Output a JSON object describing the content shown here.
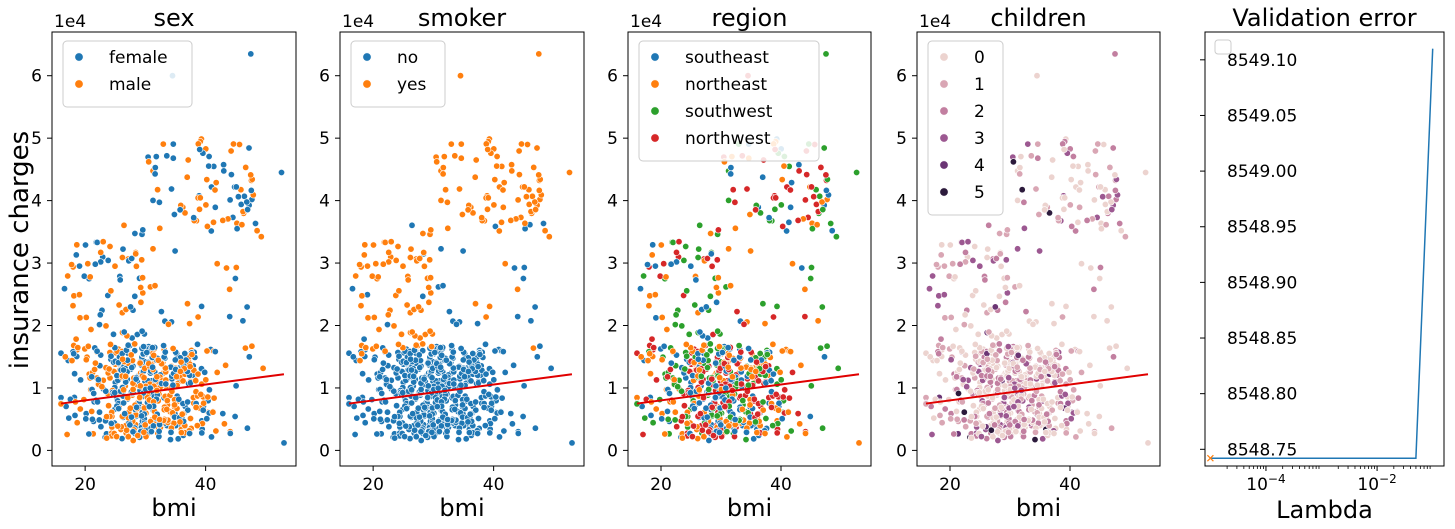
{
  "figure": {
    "ylabel": "insurance charges",
    "scale_label": "1e4"
  },
  "colors": {
    "tab_blue": "#1f77b4",
    "tab_orange": "#ff7f0e",
    "tab_green": "#2ca02c",
    "tab_red": "#d62728",
    "fit_line": "#e00000",
    "children_palette": [
      "#ecd3cf",
      "#d9a6b4",
      "#c27fa0",
      "#9c5891",
      "#6b3574",
      "#2c1a3c"
    ]
  },
  "chart_data": [
    {
      "type": "scatter",
      "title": "sex",
      "xlabel": "bmi",
      "ylabel": "insurance charges",
      "xlim": [
        14.5,
        55
      ],
      "ylim": [
        -0.25,
        6.7
      ],
      "y_scale_label": "1e4",
      "x_ticks": [
        20,
        40
      ],
      "y_ticks": [
        0,
        1,
        2,
        3,
        4,
        5,
        6
      ],
      "legend_position": "upper-left",
      "series": [
        {
          "name": "female",
          "color": "#1f77b4"
        },
        {
          "name": "male",
          "color": "#ff7f0e"
        }
      ],
      "fit_line": {
        "x": [
          16,
          53
        ],
        "y": [
          0.75,
          1.22
        ]
      },
      "grid": false
    },
    {
      "type": "scatter",
      "title": "smoker",
      "xlabel": "bmi",
      "ylabel": "",
      "xlim": [
        14.5,
        55
      ],
      "ylim": [
        -0.25,
        6.7
      ],
      "y_scale_label": "1e4",
      "x_ticks": [
        20,
        40
      ],
      "y_ticks": [
        0,
        1,
        2,
        3,
        4,
        5,
        6
      ],
      "legend_position": "upper-left",
      "series": [
        {
          "name": "no",
          "color": "#1f77b4"
        },
        {
          "name": "yes",
          "color": "#ff7f0e"
        }
      ],
      "fit_line": {
        "x": [
          16,
          53
        ],
        "y": [
          0.75,
          1.22
        ]
      },
      "grid": false
    },
    {
      "type": "scatter",
      "title": "region",
      "xlabel": "bmi",
      "ylabel": "",
      "xlim": [
        14.5,
        55
      ],
      "ylim": [
        -0.25,
        6.7
      ],
      "y_scale_label": "1e4",
      "x_ticks": [
        20,
        40
      ],
      "y_ticks": [
        0,
        1,
        2,
        3,
        4,
        5,
        6
      ],
      "legend_position": "upper-left",
      "series": [
        {
          "name": "southeast",
          "color": "#1f77b4"
        },
        {
          "name": "northeast",
          "color": "#ff7f0e"
        },
        {
          "name": "southwest",
          "color": "#2ca02c"
        },
        {
          "name": "northwest",
          "color": "#d62728"
        }
      ],
      "fit_line": {
        "x": [
          16,
          53
        ],
        "y": [
          0.75,
          1.22
        ]
      },
      "grid": false
    },
    {
      "type": "scatter",
      "title": "children",
      "xlabel": "bmi",
      "ylabel": "",
      "xlim": [
        14.5,
        55
      ],
      "ylim": [
        -0.25,
        6.7
      ],
      "y_scale_label": "1e4",
      "x_ticks": [
        20,
        40
      ],
      "y_ticks": [
        0,
        1,
        2,
        3,
        4,
        5,
        6
      ],
      "legend_position": "upper-left",
      "series": [
        {
          "name": "0",
          "color": "#ecd3cf"
        },
        {
          "name": "1",
          "color": "#d9a6b4"
        },
        {
          "name": "2",
          "color": "#c27fa0"
        },
        {
          "name": "3",
          "color": "#9c5891"
        },
        {
          "name": "4",
          "color": "#6b3574"
        },
        {
          "name": "5",
          "color": "#2c1a3c"
        }
      ],
      "fit_line": {
        "x": [
          16,
          53
        ],
        "y": [
          0.75,
          1.22
        ]
      },
      "grid": false
    },
    {
      "type": "line",
      "title": "Validation error",
      "xlabel": "Lambda",
      "ylabel": "",
      "x_scale": "log",
      "xlim": [
        8e-06,
        0.16
      ],
      "ylim": [
        8548.735,
        8549.125
      ],
      "x_ticks": [
        "10^-4",
        "10^-2"
      ],
      "y_ticks": [
        "8548.75",
        "8548.80",
        "8548.85",
        "8548.90",
        "8548.95",
        "8549.00",
        "8549.05",
        "8549.10"
      ],
      "series": [
        {
          "name": "",
          "color": "#1f77b4",
          "x": [
            1e-05,
            2e-05,
            5e-05,
            0.0001,
            0.0002,
            0.0005,
            0.001,
            0.002,
            0.005,
            0.01,
            0.02,
            0.05,
            0.1
          ],
          "y": [
            8548.742,
            8548.742,
            8548.742,
            8548.742,
            8548.742,
            8548.742,
            8548.742,
            8548.742,
            8548.742,
            8548.742,
            8548.742,
            8548.742,
            8549.11
          ]
        }
      ],
      "marker": {
        "x": 1e-05,
        "y": 8548.742,
        "symbol": "x",
        "color": "#ff7f0e"
      },
      "legend_position": "upper-left",
      "legend_entries": [],
      "grid": false
    }
  ]
}
